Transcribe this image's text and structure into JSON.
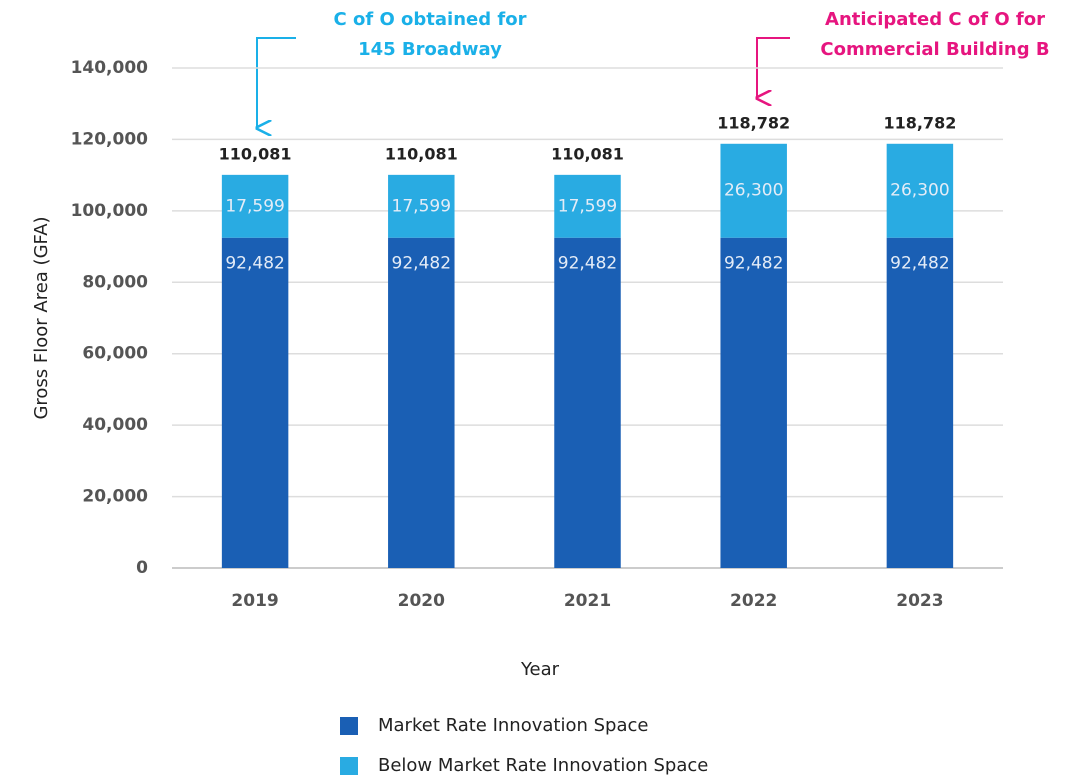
{
  "chart_data": {
    "type": "stacked_bar",
    "categories": [
      "2019",
      "2020",
      "2021",
      "2022",
      "2023"
    ],
    "series": [
      {
        "name": "Market Rate Innovation Space",
        "color": "#1a5fb4",
        "values": [
          92482,
          92482,
          92482,
          92482,
          92482
        ],
        "value_labels": [
          "92,482",
          "92,482",
          "92,482",
          "92,482",
          "92,482"
        ]
      },
      {
        "name": "Below Market Rate Innovation Space",
        "color": "#29abe2",
        "values": [
          17599,
          17599,
          17599,
          26300,
          26300
        ],
        "value_labels": [
          "17,599",
          "17,599",
          "17,599",
          "26,300",
          "26,300"
        ]
      }
    ],
    "totals": {
      "values": [
        110081,
        110081,
        110081,
        118782,
        118782
      ],
      "value_labels": [
        "110,081",
        "110,081",
        "110,081",
        "118,782",
        "118,782"
      ]
    },
    "ylim": [
      0,
      140000
    ],
    "yticks": [
      0,
      {
        "value": 20000,
        "label": "20,000"
      },
      {
        "value": 40000,
        "label": "40,000"
      },
      {
        "value": 60000,
        "label": "60,000"
      },
      {
        "value": 80000,
        "label": "80,000"
      },
      {
        "value": 100000,
        "label": "100,000"
      },
      {
        "value": 120000,
        "label": "120,000"
      },
      {
        "value": 140000,
        "label": "140,000"
      }
    ],
    "grid": true,
    "xlabel": "Year",
    "ylabel": "Gross Floor Area (GFA)",
    "annotations": [
      {
        "lines": [
          "C of O obtained for",
          "145 Broadway"
        ],
        "color": "#1ab0e8"
      },
      {
        "lines": [
          "Anticipated C of O for",
          "Commercial Building B"
        ],
        "color": "#e6157f"
      }
    ]
  }
}
